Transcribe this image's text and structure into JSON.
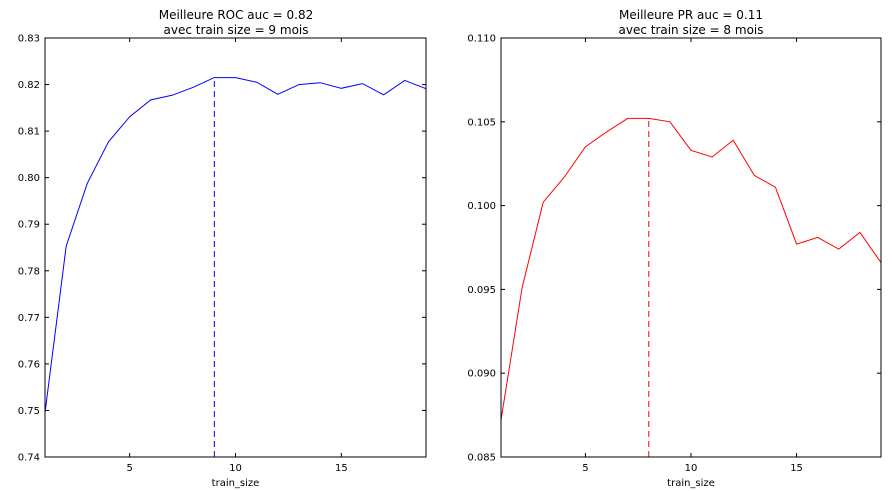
{
  "chart_data": [
    {
      "type": "line",
      "title_line1": "Meilleure ROC auc = 0.82",
      "title_line2": "avec train size = 9 mois",
      "xlabel": "train_size",
      "ylabel": "",
      "xlim": [
        1,
        19
      ],
      "ylim": [
        0.74,
        0.83
      ],
      "xticks": [
        5,
        10,
        15
      ],
      "yticks": [
        0.74,
        0.75,
        0.76,
        0.77,
        0.78,
        0.79,
        0.8,
        0.81,
        0.82,
        0.83
      ],
      "ytick_labels": [
        "0.74",
        "0.75",
        "0.76",
        "0.77",
        "0.78",
        "0.79",
        "0.80",
        "0.81",
        "0.82",
        "0.83"
      ],
      "line_color": "#0000ff",
      "best_x": 9,
      "x": [
        1,
        2,
        3,
        4,
        5,
        6,
        7,
        8,
        9,
        10,
        11,
        12,
        13,
        14,
        15,
        16,
        17,
        18,
        19
      ],
      "values": [
        0.7495,
        0.7853,
        0.7988,
        0.8077,
        0.8131,
        0.8167,
        0.8177,
        0.8194,
        0.8215,
        0.8215,
        0.8205,
        0.8179,
        0.82,
        0.8204,
        0.8192,
        0.8202,
        0.8178,
        0.8209,
        0.8191
      ]
    },
    {
      "type": "line",
      "title_line1": "Meilleure PR auc = 0.11",
      "title_line2": "avec train size = 8 mois",
      "xlabel": "train_size",
      "ylabel": "",
      "xlim": [
        1,
        19
      ],
      "ylim": [
        0.085,
        0.11
      ],
      "xticks": [
        5,
        10,
        15
      ],
      "yticks": [
        0.085,
        0.09,
        0.095,
        0.1,
        0.105,
        0.11
      ],
      "ytick_labels": [
        "0.085",
        "0.090",
        "0.095",
        "0.100",
        "0.105",
        "0.110"
      ],
      "line_color": "#ff0000",
      "best_x": 8,
      "x": [
        1,
        2,
        3,
        4,
        5,
        6,
        7,
        8,
        9,
        10,
        11,
        12,
        13,
        14,
        15,
        16,
        17,
        18,
        19
      ],
      "values": [
        0.0872,
        0.0951,
        0.1002,
        0.1017,
        0.1035,
        0.1044,
        0.1052,
        0.1052,
        0.105,
        0.1033,
        0.1029,
        0.1039,
        0.1018,
        0.1011,
        0.0977,
        0.0981,
        0.0974,
        0.0984,
        0.0966
      ]
    }
  ]
}
